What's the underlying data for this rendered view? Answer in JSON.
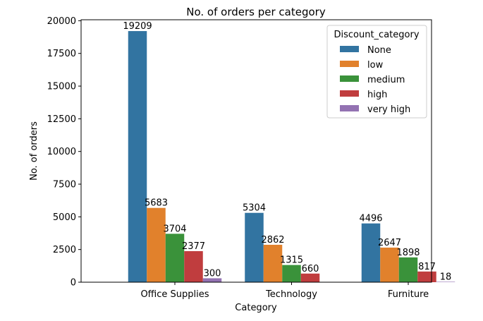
{
  "chart_data": {
    "type": "bar",
    "title": "No. of orders per category",
    "xlabel": "Category",
    "ylabel": "No. of orders",
    "ylim": [
      0,
      20075
    ],
    "yticks": [
      0,
      2500,
      5000,
      7500,
      10000,
      12500,
      15000,
      17500,
      20000
    ],
    "categories": [
      "Office Supplies",
      "Technology",
      "Furniture"
    ],
    "legend": {
      "title": "Discount_category",
      "placement": "top-right"
    },
    "grid": false,
    "series": [
      {
        "name": "None",
        "color": "#3274a1",
        "values": [
          19209,
          5304,
          4496
        ]
      },
      {
        "name": "low",
        "color": "#e1812c",
        "values": [
          5683,
          2862,
          2647
        ]
      },
      {
        "name": "medium",
        "color": "#3a923a",
        "values": [
          3704,
          1315,
          1898
        ]
      },
      {
        "name": "high",
        "color": "#c03d3e",
        "values": [
          2377,
          660,
          817
        ]
      },
      {
        "name": "very high",
        "color": "#9372b2",
        "values": [
          300,
          null,
          18
        ]
      }
    ]
  }
}
